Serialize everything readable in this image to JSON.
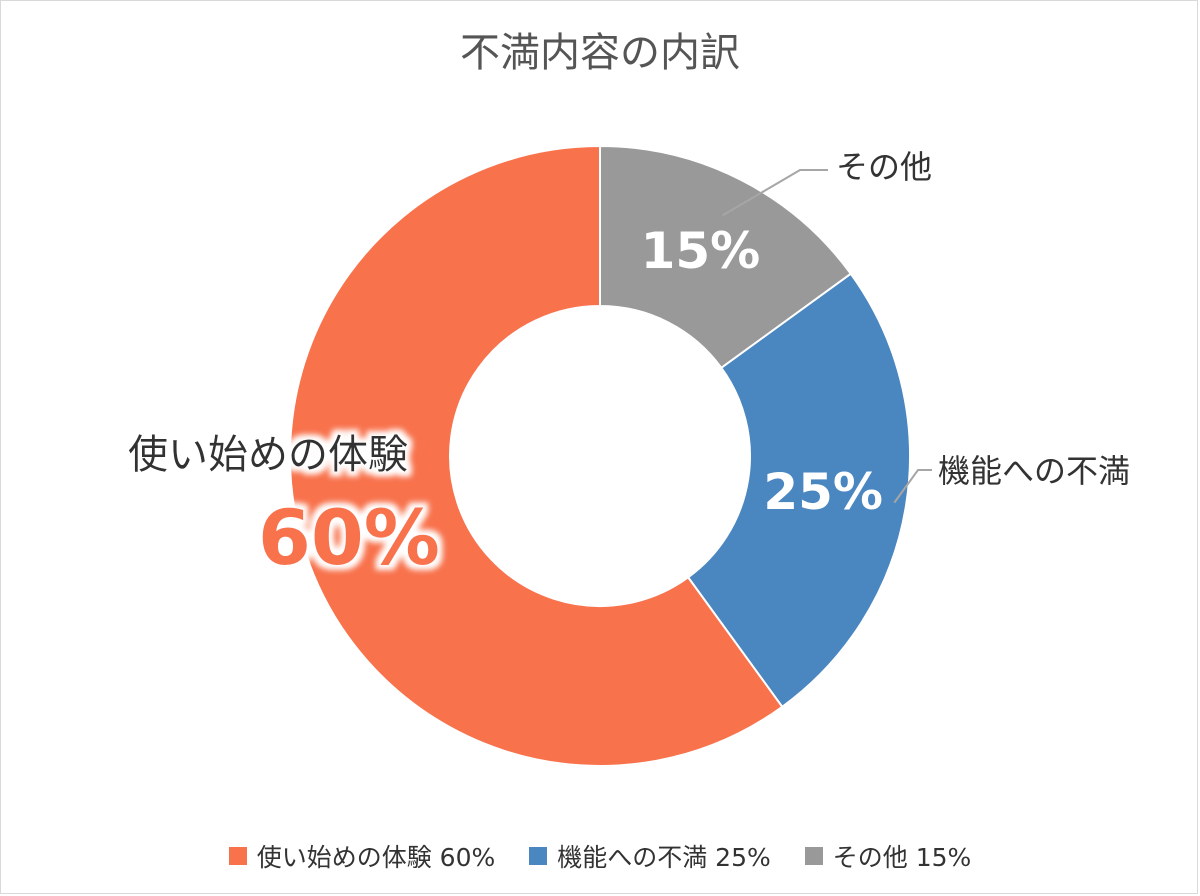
{
  "chart_data": {
    "type": "pie",
    "style": "donut",
    "title": "不満内容の内訳",
    "slices": [
      {
        "label": "その他",
        "value": 15,
        "value_label": "15%",
        "legend_label": "その他 15%",
        "color": "#999999"
      },
      {
        "label": "機能への不満",
        "value": 25,
        "value_label": "25%",
        "legend_label": "機能への不満 25%",
        "color": "#4a86c0"
      },
      {
        "label": "使い始めの体験",
        "value": 60,
        "value_label": "60%",
        "legend_label": "使い始めの体験 60%",
        "color": "#f8724c"
      }
    ],
    "legend_order": [
      2,
      1,
      0
    ],
    "legend_position": "bottom"
  }
}
